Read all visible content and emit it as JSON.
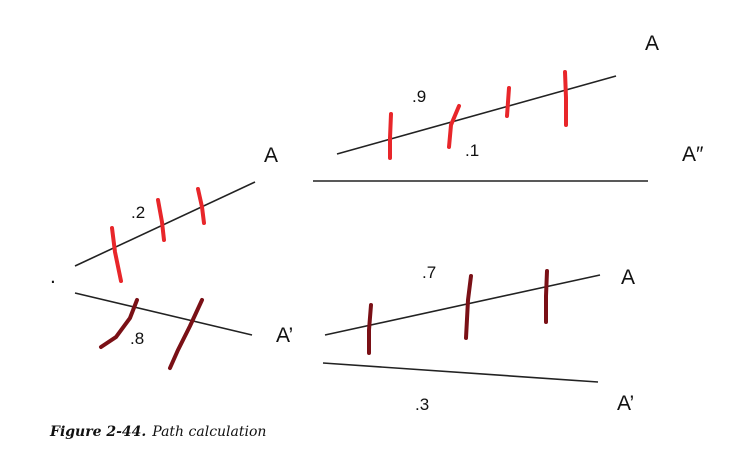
{
  "labels": {
    "left_a": "A",
    "left_a_prime": "A’",
    "top_a": "A",
    "top_a_double_prime": "A″",
    "bottom_a": "A",
    "bottom_a_prime": "A’",
    "start_dot": "."
  },
  "values": {
    "left_upper": ".2",
    "left_lower": ".8",
    "top_upper": ".9",
    "top_lower": ".1",
    "bottom_upper": ".7",
    "bottom_lower": ".3"
  },
  "caption": {
    "figure": "Figure 2-44.",
    "title": "Path calculation"
  },
  "colors": {
    "line": "#222222",
    "red_tick": "#e8262a",
    "dark_red_tick": "#7a1016"
  }
}
